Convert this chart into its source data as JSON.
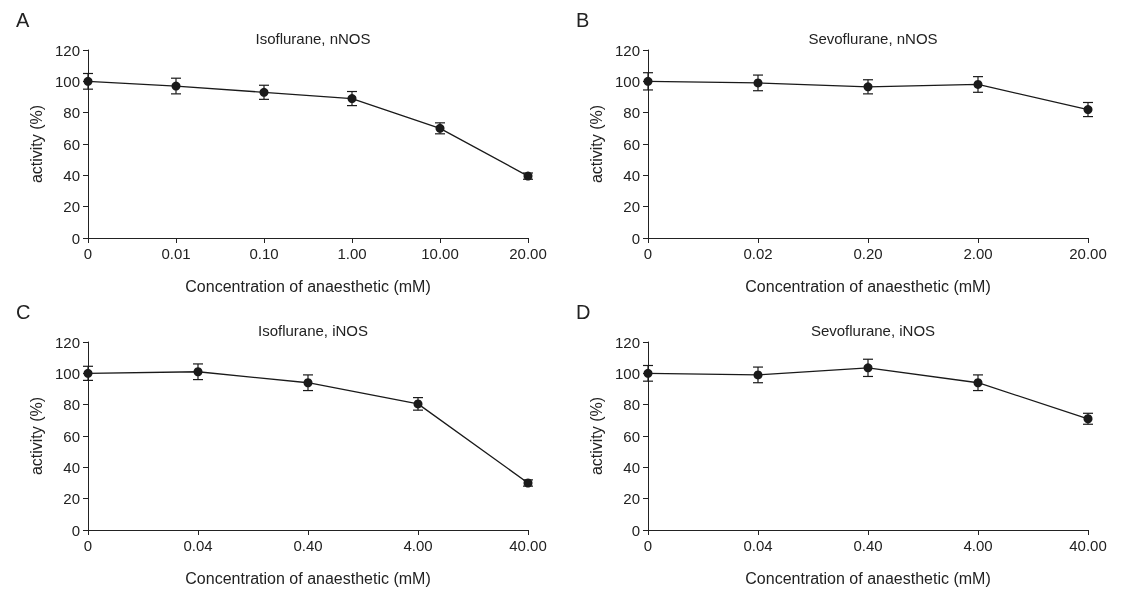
{
  "chart_data": [
    {
      "type": "line",
      "title": "Isoflurane, nNOS",
      "annotations": [
        "A"
      ],
      "xlabel": "Concentration of anaesthetic (mM)",
      "ylabel": "activity (%)",
      "categories": [
        "0",
        "0.01",
        "0.10",
        "1.00",
        "10.00",
        "20.00"
      ],
      "series": [
        {
          "color": "#1a1a1a",
          "values": [
            100,
            97,
            93,
            89,
            70,
            39.5
          ],
          "errors": [
            5,
            5,
            4.5,
            4.5,
            3.5,
            2
          ]
        }
      ],
      "ylim": [
        0,
        120
      ],
      "yticks": [
        0,
        20,
        40,
        60,
        80,
        100,
        120
      ],
      "marker": "circle",
      "line_style": "solid",
      "grid": false
    },
    {
      "type": "line",
      "title": "Sevoflurane, nNOS",
      "annotations": [
        "B"
      ],
      "xlabel": "Concentration of anaesthetic (mM)",
      "ylabel": "activity (%)",
      "categories": [
        "0",
        "0.02",
        "0.20",
        "2.00",
        "20.00"
      ],
      "series": [
        {
          "color": "#1a1a1a",
          "values": [
            100,
            99,
            96.5,
            98,
            82
          ],
          "errors": [
            5.5,
            5,
            4.5,
            5,
            4.5
          ]
        }
      ],
      "ylim": [
        0,
        120
      ],
      "yticks": [
        0,
        20,
        40,
        60,
        80,
        100,
        120
      ],
      "marker": "circle",
      "line_style": "solid",
      "grid": false
    },
    {
      "type": "line",
      "title": "Isoflurane, iNOS",
      "annotations": [
        "C"
      ],
      "xlabel": "Concentration of anaesthetic (mM)",
      "ylabel": "activity (%)",
      "categories": [
        "0",
        "0.04",
        "0.40",
        "4.00",
        "40.00"
      ],
      "series": [
        {
          "color": "#1a1a1a",
          "values": [
            100,
            101,
            94,
            80.5,
            30
          ],
          "errors": [
            4.5,
            5,
            5,
            4,
            2
          ]
        }
      ],
      "ylim": [
        0,
        120
      ],
      "yticks": [
        0,
        20,
        40,
        60,
        80,
        100,
        120
      ],
      "marker": "circle",
      "line_style": "solid",
      "grid": false
    },
    {
      "type": "line",
      "title": "Sevoflurane, iNOS",
      "annotations": [
        "D"
      ],
      "xlabel": "Concentration of anaesthetic (mM)",
      "ylabel": "activity (%)",
      "categories": [
        "0",
        "0.04",
        "0.40",
        "4.00",
        "40.00"
      ],
      "series": [
        {
          "color": "#1a1a1a",
          "values": [
            100,
            99,
            103.5,
            94,
            71
          ],
          "errors": [
            5,
            5,
            5.5,
            5,
            3.5
          ]
        }
      ],
      "ylim": [
        0,
        120
      ],
      "yticks": [
        0,
        20,
        40,
        60,
        80,
        100,
        120
      ],
      "marker": "circle",
      "line_style": "solid",
      "grid": false
    }
  ]
}
